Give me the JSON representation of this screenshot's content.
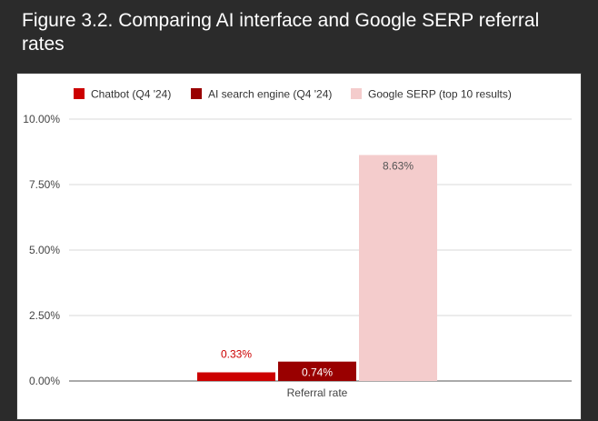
{
  "figure_title": "Figure 3.2. Comparing AI interface and Google SERP referral rates",
  "chart_data": {
    "type": "bar",
    "categories": [
      "Referral rate"
    ],
    "series": [
      {
        "name": "Chatbot (Q4 '24)",
        "values": [
          0.33
        ],
        "label": "0.33%",
        "color": "#cc0000",
        "label_color": "#cc0000"
      },
      {
        "name": "AI search engine (Q4 '24)",
        "values": [
          0.74
        ],
        "label": "0.74%",
        "color": "#990000",
        "label_color": "#ffffff"
      },
      {
        "name": "Google SERP (top 10 results)",
        "values": [
          8.63
        ],
        "label": "8.63%",
        "color": "#f4cccc",
        "label_color": "#555555"
      }
    ],
    "ylim": [
      0,
      10
    ],
    "yticks": [
      0,
      2.5,
      5,
      7.5,
      10
    ],
    "ytick_labels": [
      "0.00%",
      "2.50%",
      "5.00%",
      "7.50%",
      "10.00%"
    ],
    "grid": true,
    "legend_position": "top"
  }
}
